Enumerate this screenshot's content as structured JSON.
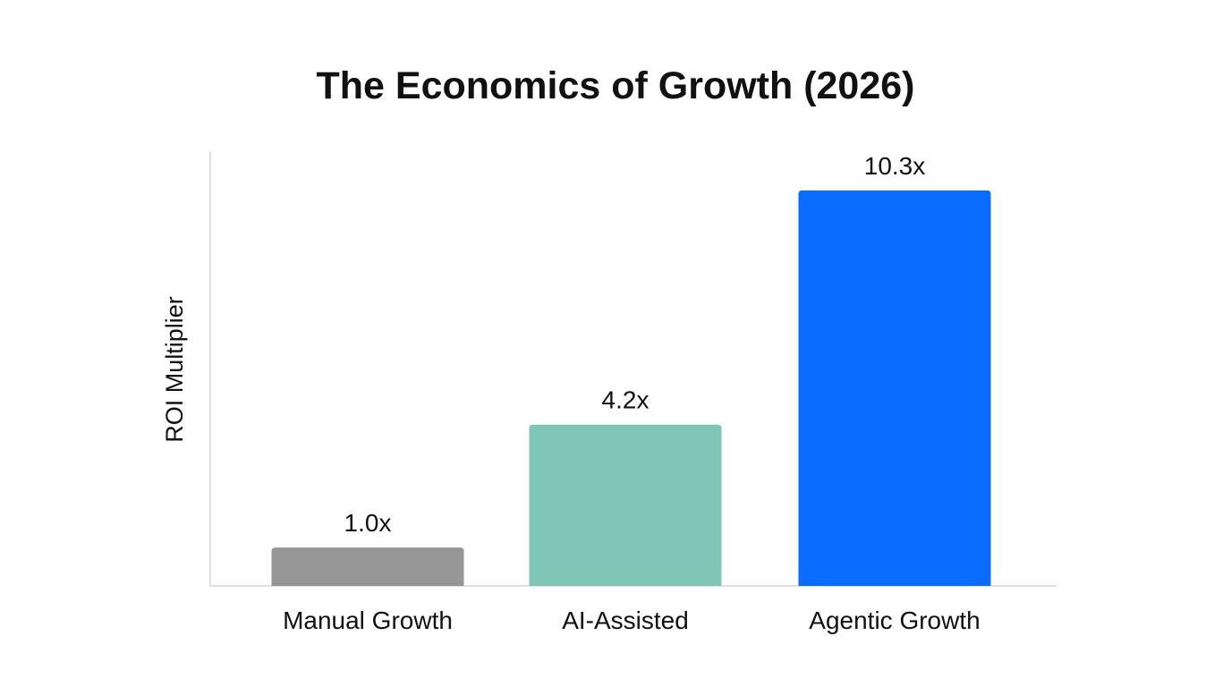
{
  "chart_data": {
    "type": "bar",
    "title": "The Economics of Growth (2026)",
    "xlabel": "",
    "ylabel": "ROI Multiplier",
    "categories": [
      "Manual Growth",
      "AI-Assisted",
      "Agentic Growth"
    ],
    "values": [
      1.0,
      4.2,
      10.3
    ],
    "data_labels": [
      "1.0x",
      "4.2x",
      "10.3x"
    ],
    "colors": [
      "#969696",
      "#7fc6b7",
      "#0a6cff"
    ],
    "ylim": [
      0,
      11.3
    ],
    "grid": false,
    "legend": "none"
  }
}
